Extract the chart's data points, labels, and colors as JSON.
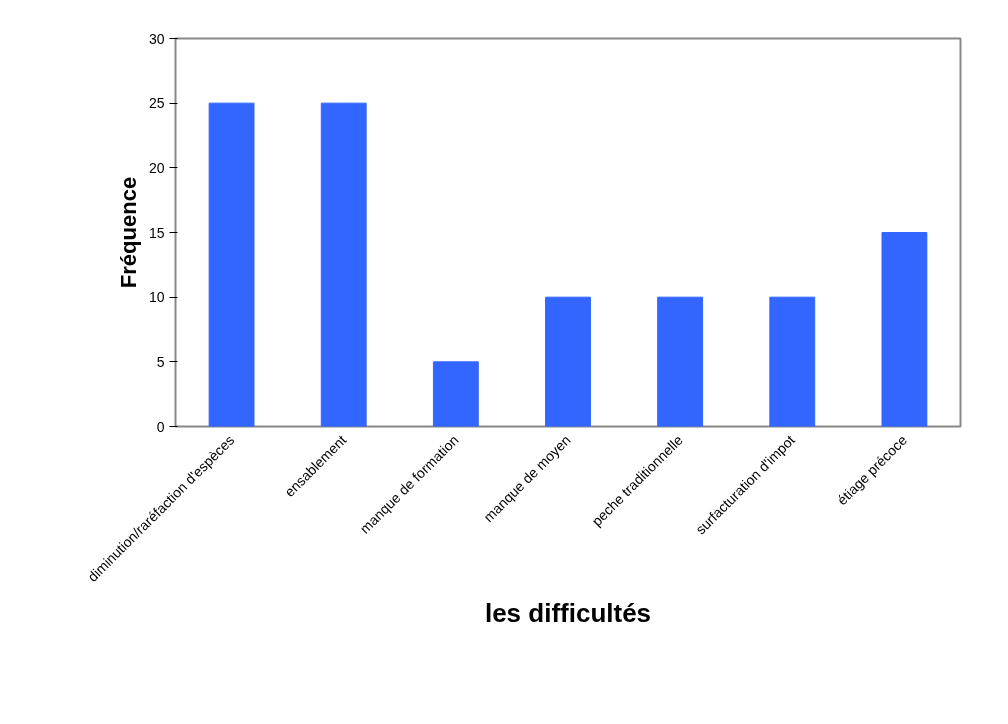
{
  "chart_data": {
    "type": "bar",
    "xlabel": "les difficultés",
    "ylabel": "Fréquence",
    "categories": [
      "diminution/raréfaction d'espèces",
      "ensablement",
      "manque de formation",
      "manque de moyen",
      "peche traditionnelle",
      "surfacturation d'impot",
      "étiage précoce"
    ],
    "values": [
      25,
      25,
      5,
      10,
      10,
      10,
      15
    ],
    "color": "#3366ff",
    "ylim": [
      0,
      30
    ],
    "yticks": [
      0,
      5,
      10,
      15,
      20,
      25,
      30
    ],
    "grid": false
  }
}
